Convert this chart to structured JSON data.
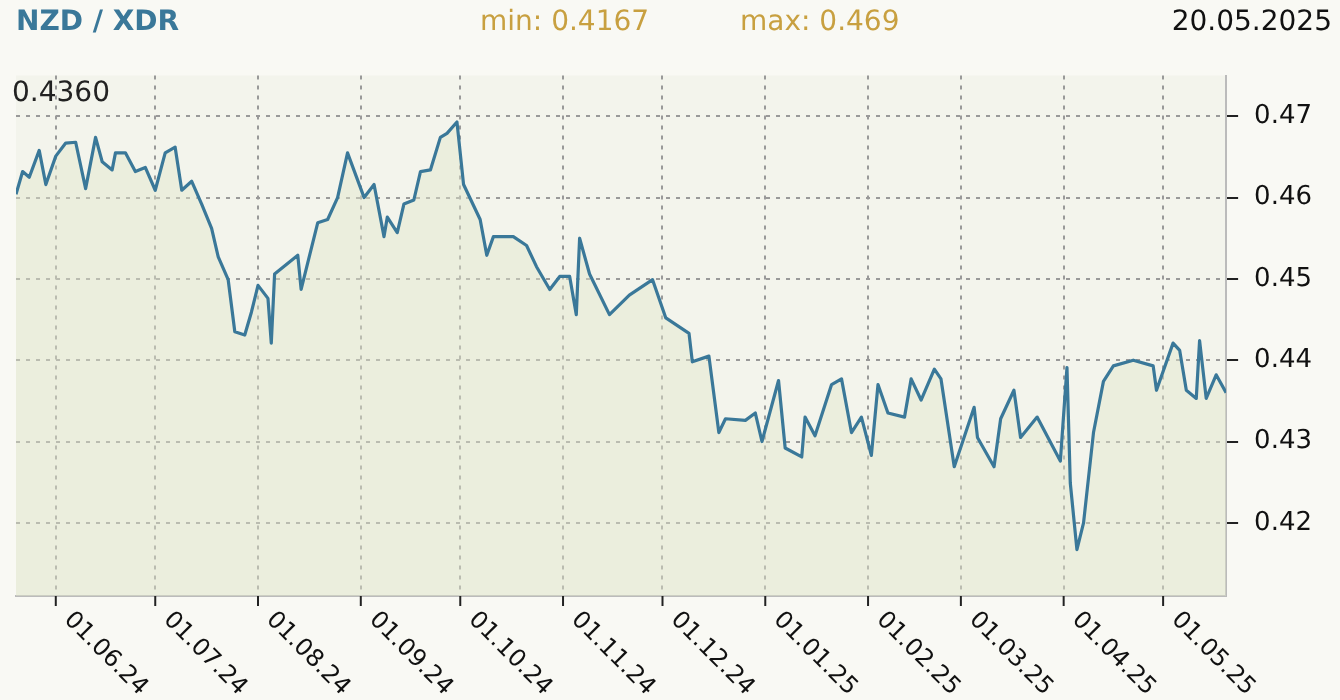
{
  "chart_data": {
    "type": "area",
    "title": "NZD / XDR",
    "annotations": [
      "min: 0.4167",
      "max: 0.469",
      "20.05.2025",
      "0.4360"
    ],
    "x": [
      "2024-05-20",
      "2024-05-22",
      "2024-05-24",
      "2024-05-27",
      "2024-05-29",
      "2024-06-01",
      "2024-06-04",
      "2024-06-07",
      "2024-06-10",
      "2024-06-13",
      "2024-06-15",
      "2024-06-18",
      "2024-06-19",
      "2024-06-22",
      "2024-06-25",
      "2024-06-28",
      "2024-07-01",
      "2024-07-04",
      "2024-07-07",
      "2024-07-09",
      "2024-07-12",
      "2024-07-15",
      "2024-07-18",
      "2024-07-20",
      "2024-07-23",
      "2024-07-25",
      "2024-07-28",
      "2024-07-30",
      "2024-08-01",
      "2024-08-04",
      "2024-08-05",
      "2024-08-06",
      "2024-08-13",
      "2024-08-14",
      "2024-08-19",
      "2024-08-22",
      "2024-08-25",
      "2024-08-28",
      "2024-09-02",
      "2024-09-05",
      "2024-09-08",
      "2024-09-09",
      "2024-09-12",
      "2024-09-14",
      "2024-09-17",
      "2024-09-19",
      "2024-09-22",
      "2024-09-25",
      "2024-09-27",
      "2024-09-30",
      "2024-10-02",
      "2024-10-07",
      "2024-10-09",
      "2024-10-11",
      "2024-10-17",
      "2024-10-21",
      "2024-10-24",
      "2024-10-28",
      "2024-10-31",
      "2024-11-03",
      "2024-11-05",
      "2024-11-06",
      "2024-11-09",
      "2024-11-15",
      "2024-11-21",
      "2024-11-28",
      "2024-12-02",
      "2024-12-09",
      "2024-12-10",
      "2024-12-15",
      "2024-12-18",
      "2024-12-20",
      "2024-12-26",
      "2024-12-29",
      "2024-12-31",
      "2025-01-05",
      "2025-01-07",
      "2025-01-12",
      "2025-01-13",
      "2025-01-16",
      "2025-01-21",
      "2025-01-24",
      "2025-01-27",
      "2025-01-30",
      "2025-02-02",
      "2025-02-04",
      "2025-02-07",
      "2025-02-12",
      "2025-02-14",
      "2025-02-17",
      "2025-02-21",
      "2025-02-23",
      "2025-02-27",
      "2025-03-05",
      "2025-03-06",
      "2025-03-11",
      "2025-03-13",
      "2025-03-17",
      "2025-03-19",
      "2025-03-24",
      "2025-03-31",
      "2025-04-02",
      "2025-04-03",
      "2025-04-05",
      "2025-04-07",
      "2025-04-10",
      "2025-04-13",
      "2025-04-16",
      "2025-04-22",
      "2025-04-28",
      "2025-04-29",
      "2025-05-04",
      "2025-05-06",
      "2025-05-08",
      "2025-05-11",
      "2025-05-12",
      "2025-05-14",
      "2025-05-17",
      "2025-05-20"
    ],
    "series": [
      {
        "color": "#3a7899",
        "values": [
          0.4604,
          0.4632,
          0.4625,
          0.4658,
          0.4616,
          0.4651,
          0.4667,
          0.4668,
          0.4611,
          0.4674,
          0.4644,
          0.4634,
          0.4655,
          0.4655,
          0.4632,
          0.4637,
          0.4609,
          0.4655,
          0.4662,
          0.4609,
          0.462,
          0.4592,
          0.4562,
          0.4527,
          0.4499,
          0.4435,
          0.4431,
          0.4459,
          0.4492,
          0.4476,
          0.4421,
          0.4506,
          0.4529,
          0.4487,
          0.4569,
          0.4573,
          0.46,
          0.4655,
          0.46,
          0.4616,
          0.4552,
          0.4576,
          0.4557,
          0.4592,
          0.4597,
          0.4632,
          0.4634,
          0.4674,
          0.4679,
          0.4693,
          0.4616,
          0.4573,
          0.4529,
          0.4552,
          0.4552,
          0.4541,
          0.4515,
          0.4487,
          0.4503,
          0.4503,
          0.4456,
          0.455,
          0.4506,
          0.4456,
          0.448,
          0.4499,
          0.4452,
          0.4433,
          0.4398,
          0.4405,
          0.4311,
          0.4328,
          0.4326,
          0.4335,
          0.43,
          0.4375,
          0.4292,
          0.4281,
          0.433,
          0.4307,
          0.437,
          0.4377,
          0.4311,
          0.433,
          0.4283,
          0.437,
          0.4335,
          0.433,
          0.4377,
          0.4351,
          0.4389,
          0.4377,
          0.4269,
          0.4342,
          0.4305,
          0.4269,
          0.4328,
          0.4363,
          0.4305,
          0.433,
          0.4276,
          0.4391,
          0.4249,
          0.4167,
          0.42,
          0.4311,
          0.4374,
          0.4393,
          0.44,
          0.4393,
          0.4363,
          0.4421,
          0.4412,
          0.4363,
          0.4353,
          0.4424,
          0.4353,
          0.4382,
          0.436
        ]
      }
    ],
    "xlim": [
      "2024-05-20",
      "2025-05-20"
    ],
    "xticks": [
      {
        "value": "2024-06-01",
        "label": "01.06.24"
      },
      {
        "value": "2024-07-01",
        "label": "01.07.24"
      },
      {
        "value": "2024-08-01",
        "label": "01.08.24"
      },
      {
        "value": "2024-09-01",
        "label": "01.09.24"
      },
      {
        "value": "2024-10-01",
        "label": "01.10.24"
      },
      {
        "value": "2024-11-01",
        "label": "01.11.24"
      },
      {
        "value": "2024-12-01",
        "label": "01.12.24"
      },
      {
        "value": "2025-01-01",
        "label": "01.01.25"
      },
      {
        "value": "2025-02-01",
        "label": "01.02.25"
      },
      {
        "value": "2025-03-01",
        "label": "01.03.25"
      },
      {
        "value": "2025-04-01",
        "label": "01.04.25"
      },
      {
        "value": "2025-05-01",
        "label": "01.05.25"
      }
    ],
    "ylim": [
      0.411,
      0.475
    ],
    "yticks": [
      0.42,
      0.43,
      0.44,
      0.45,
      0.46,
      0.47
    ],
    "grid": true,
    "legend": false,
    "marker": "none",
    "line_style": "solid"
  }
}
